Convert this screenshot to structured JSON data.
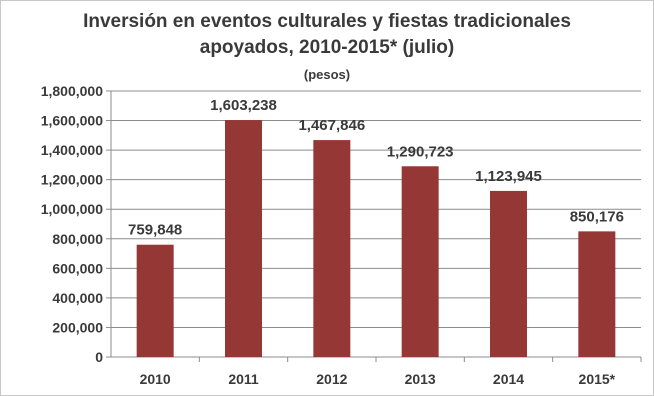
{
  "chart_data": {
    "type": "bar",
    "title": "Inversión en eventos culturales y fiestas tradicionales apoyados, 2010-2015* (julio)",
    "title_lines": [
      "Inversión en eventos culturales y fiestas tradicionales",
      "apoyados, 2010-2015* (julio)"
    ],
    "subtitle": "(pesos)",
    "categories": [
      "2010",
      "2011",
      "2012",
      "2013",
      "2014",
      "2015*"
    ],
    "values": [
      759848,
      1603238,
      1467846,
      1290723,
      1123945,
      850176
    ],
    "data_labels": [
      "759,848",
      "1,603,238",
      "1,467,846",
      "1,290,723",
      "1,123,945",
      "850,176"
    ],
    "yticks": [
      0,
      200000,
      400000,
      600000,
      800000,
      1000000,
      1200000,
      1400000,
      1600000,
      1800000
    ],
    "ytick_labels": [
      "0",
      "200,000",
      "400,000",
      "600,000",
      "800,000",
      "1,000,000",
      "1,200,000",
      "1,400,000",
      "1,600,000",
      "1,800,000"
    ],
    "ylim": [
      0,
      1800000
    ],
    "xlabel": "",
    "ylabel": "",
    "grid": true,
    "legend": "none",
    "colors": {
      "bar": "#953735",
      "grid": "#8c8c8c",
      "axis": "#8c8c8c",
      "text": "#3a3a3a"
    }
  }
}
